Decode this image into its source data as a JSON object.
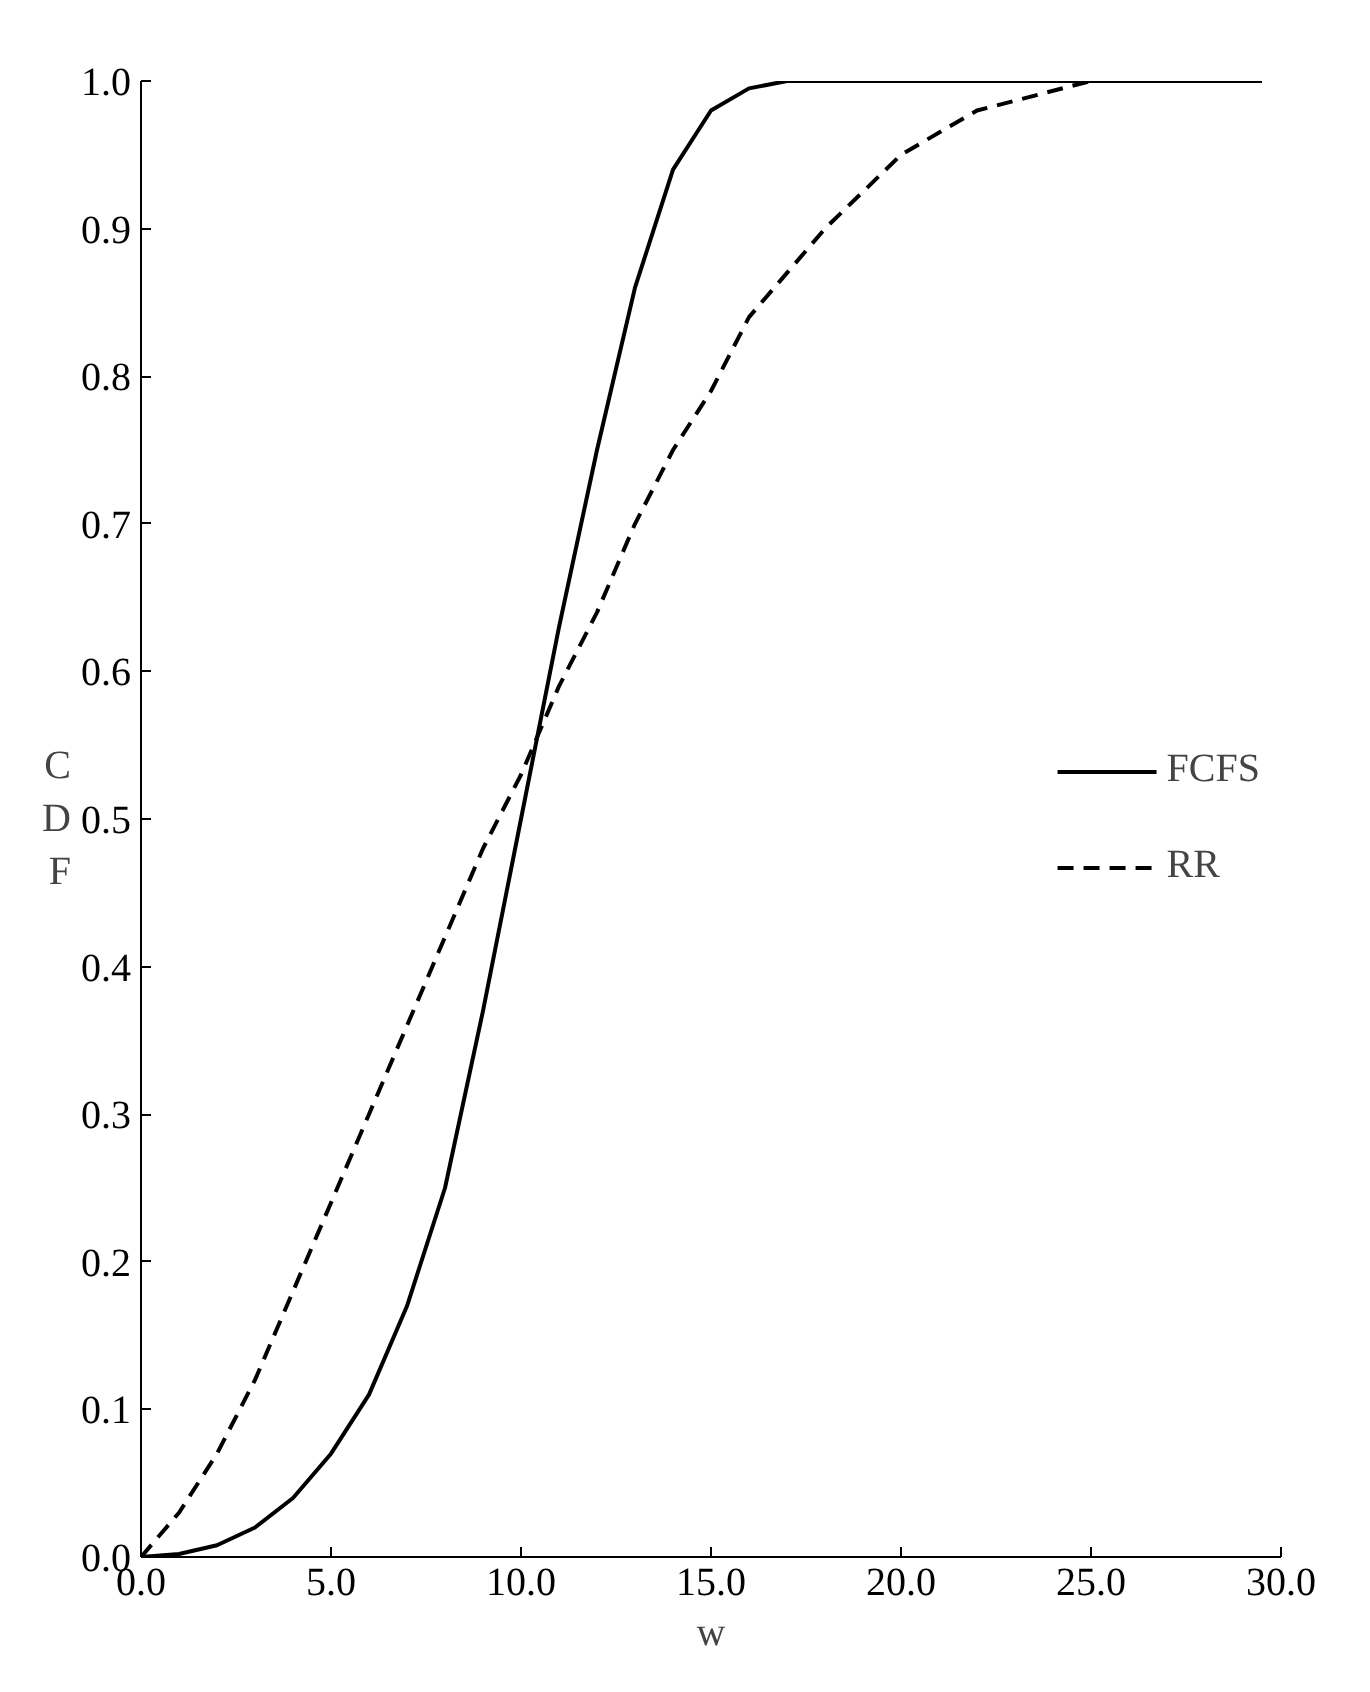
{
  "chart_data": {
    "type": "line",
    "xlabel": "w",
    "ylabel": "CDF",
    "xlim": [
      0,
      30
    ],
    "ylim": [
      0,
      1.0
    ],
    "xticks": [
      {
        "value": 0,
        "label": "0.0"
      },
      {
        "value": 5,
        "label": "5.0"
      },
      {
        "value": 10,
        "label": "10.0"
      },
      {
        "value": 15,
        "label": "15.0"
      },
      {
        "value": 20,
        "label": "20.0"
      },
      {
        "value": 25,
        "label": "25.0"
      },
      {
        "value": 30,
        "label": "30.0"
      }
    ],
    "yticks": [
      {
        "value": 0,
        "label": "0.0"
      },
      {
        "value": 0.1,
        "label": "0.1"
      },
      {
        "value": 0.2,
        "label": "0.2"
      },
      {
        "value": 0.3,
        "label": "0.3"
      },
      {
        "value": 0.4,
        "label": "0.4"
      },
      {
        "value": 0.5,
        "label": "0.5"
      },
      {
        "value": 0.6,
        "label": "0.6"
      },
      {
        "value": 0.7,
        "label": "0.7"
      },
      {
        "value": 0.8,
        "label": "0.8"
      },
      {
        "value": 0.9,
        "label": "0.9"
      },
      {
        "value": 1.0,
        "label": "1.0"
      }
    ],
    "x": [
      0,
      1,
      2,
      3,
      4,
      5,
      6,
      7,
      8,
      9,
      10,
      11,
      12,
      13,
      14,
      15,
      16,
      17,
      18,
      20,
      22,
      25,
      29.5
    ],
    "series": [
      {
        "name": "FCFS",
        "color": "#000000",
        "line_style": "solid",
        "values": [
          0,
          0.002,
          0.008,
          0.02,
          0.04,
          0.07,
          0.11,
          0.17,
          0.25,
          0.37,
          0.5,
          0.63,
          0.75,
          0.86,
          0.94,
          0.98,
          0.995,
          1.0,
          1.0,
          1.0,
          1.0,
          1.0,
          1.0
        ]
      },
      {
        "name": "RR",
        "color": "#000000",
        "line_style": "dashed",
        "values": [
          0,
          0.03,
          0.07,
          0.12,
          0.18,
          0.24,
          0.3,
          0.36,
          0.42,
          0.48,
          0.53,
          0.59,
          0.64,
          0.7,
          0.75,
          0.79,
          0.84,
          0.87,
          0.9,
          0.95,
          0.98,
          1.0,
          1.0
        ]
      }
    ],
    "legend": "right",
    "grid": false
  }
}
